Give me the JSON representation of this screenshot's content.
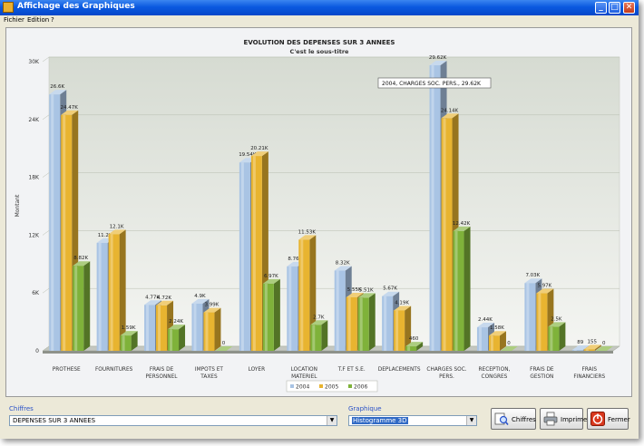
{
  "window": {
    "title": "Affichage des Graphiques",
    "controls": {
      "minimize": "_",
      "maximize": "□",
      "close": "✕"
    }
  },
  "menu": {
    "items": [
      "Fichier",
      "Edition",
      "?"
    ]
  },
  "bottom": {
    "chiffres_label": "Chiffres",
    "chiffres_value": "DEPENSES SUR 3 ANNEES",
    "graphique_label": "Graphique",
    "graphique_value": "Histogramme 3D",
    "buttons": {
      "chiffres": "Chiffres",
      "imprimer": "Imprimer",
      "fermer": "Fermer"
    }
  },
  "chart_data": {
    "type": "bar",
    "title": "EVOLUTION DES DEPENSES SUR 3 ANNEES",
    "subtitle": "C'est le sous-titre",
    "ylabel": "Montant",
    "xlabel": "",
    "ylim": [
      0,
      30000
    ],
    "yticks": [
      "0",
      "6K",
      "12K",
      "18K",
      "24K",
      "30K"
    ],
    "grid": true,
    "legend_position": "bottom-center",
    "categories": [
      "PROTHESE",
      "FOURNITURES",
      "FRAIS DE PERSONNEL",
      "IMPOTS ET TAXES",
      "LOYER",
      "LOCATION MATERIEL",
      "T.F ET S.E.",
      "DEPLACEMENTS",
      "CHARGES SOC. PERS.",
      "RECEPTION, CONGRES",
      "FRAIS DE GESTION",
      "FRAIS FINANCIERS"
    ],
    "category_lines": [
      [
        "PROTHESE"
      ],
      [
        "FOURNITURES"
      ],
      [
        "FRAIS DE",
        "PERSONNEL"
      ],
      [
        "IMPOTS ET",
        "TAXES"
      ],
      [
        "LOYER"
      ],
      [
        "LOCATION",
        "MATERIEL"
      ],
      [
        "T.F ET S.E."
      ],
      [
        "DEPLACEMENTS"
      ],
      [
        "CHARGES SOC.",
        "PERS."
      ],
      [
        "RECEPTION,",
        "CONGRES"
      ],
      [
        "FRAIS DE",
        "GESTION"
      ],
      [
        "FRAIS",
        "FINANCIERS"
      ]
    ],
    "series": [
      {
        "name": "2004",
        "color": "#a9c4e4",
        "values": [
          26600,
          11200,
          4770,
          4900,
          19540,
          8760,
          8320,
          5670,
          29620,
          2440,
          7030,
          89
        ],
        "labels": [
          "26.6K",
          "11.2K",
          "4.77K",
          "4.9K",
          "19.54K",
          "8.76K",
          "8.32K",
          "5.67K",
          "29.62K",
          "2.44K",
          "7.03K",
          "89"
        ]
      },
      {
        "name": "2005",
        "color": "#e8b430",
        "values": [
          24470,
          12100,
          4720,
          3990,
          20210,
          11530,
          5550,
          4190,
          24140,
          1580,
          5970,
          155
        ],
        "labels": [
          "24.47K",
          "12.1K",
          "4.72K",
          "3.99K",
          "20.21K",
          "11.53K",
          "5.55K",
          "4.19K",
          "24.14K",
          "1.58K",
          "5.97K",
          "155"
        ]
      },
      {
        "name": "2006",
        "color": "#7fb23a",
        "values": [
          8820,
          1590,
          2240,
          0,
          6970,
          2700,
          5510,
          460,
          12420,
          0,
          2500,
          0
        ],
        "labels": [
          "8.82K",
          "1.59K",
          "2.24K",
          "0",
          "6.97K",
          "2.7K",
          "5.51K",
          "460",
          "12.42K",
          "0",
          "2.5K",
          "0"
        ]
      }
    ],
    "tooltip": "2004, CHARGES SOC. PERS., 29.62K"
  }
}
